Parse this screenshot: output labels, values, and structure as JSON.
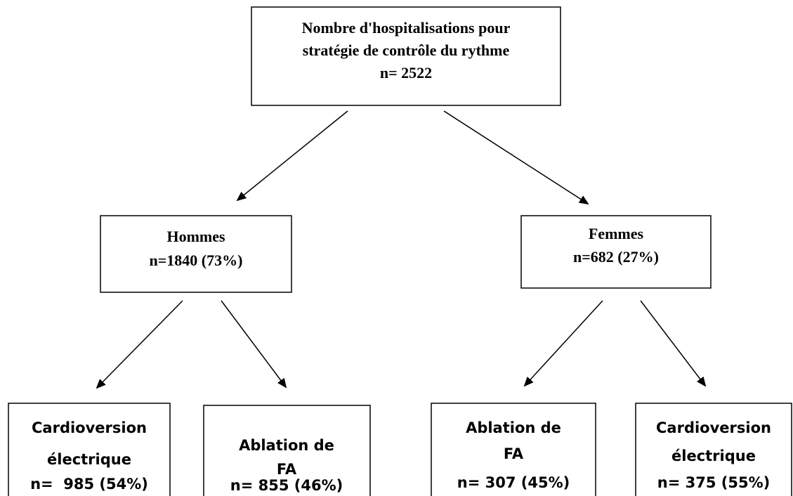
{
  "nodes": [
    {
      "lines": [
        "Nombre d'hospitalisations pour",
        "stratégie de contrôle du rythme",
        "n= 2522"
      ]
    },
    {
      "lines": [
        "Hommes",
        "n=1840 (73%)"
      ]
    },
    {
      "lines": [
        "Femmes",
        "n=682 (27%)"
      ]
    },
    {
      "lines": [
        "Cardioversion",
        "électrique",
        "n=  985 (54%)"
      ]
    },
    {
      "lines": [
        "Ablation de",
        "FA",
        "n= 855 (46%)"
      ]
    },
    {
      "lines": [
        "Ablation de",
        "FA",
        "n= 307 (45%)"
      ]
    },
    {
      "lines": [
        "Cardioversion",
        "électrique",
        "n= 375 (55%)"
      ]
    }
  ]
}
